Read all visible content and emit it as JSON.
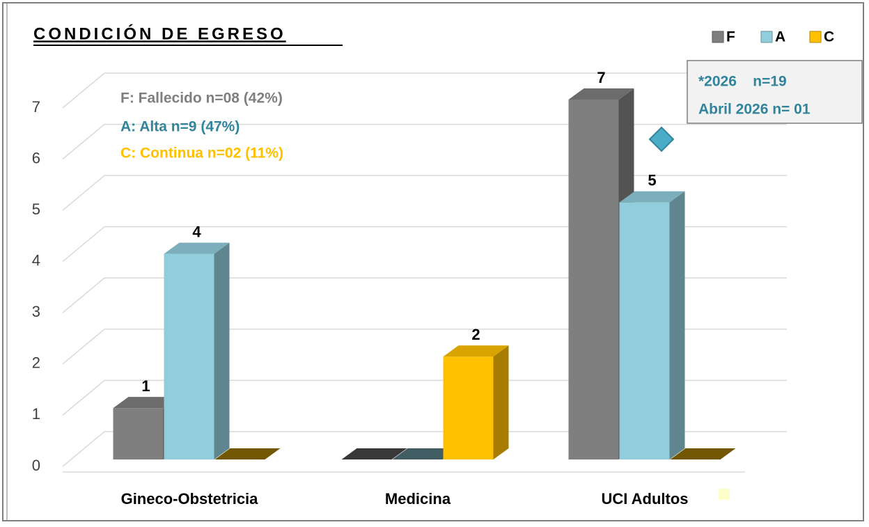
{
  "chart_data": {
    "type": "bar3d",
    "title": "CONDICIÓN DE EGRESO",
    "categories": [
      "Gineco-Obstetricia",
      "Medicina",
      "UCI Adultos"
    ],
    "series": [
      {
        "name": "F",
        "color": "#7f7f7f",
        "values": [
          1,
          0,
          7
        ]
      },
      {
        "name": "A",
        "color": "#92cddc",
        "values": [
          4,
          0,
          5
        ]
      },
      {
        "name": "C",
        "color": "#ffc000",
        "values": [
          0,
          2,
          0
        ]
      }
    ],
    "ylim": [
      0,
      7
    ],
    "yticks": [
      0,
      1,
      2,
      3,
      4,
      5,
      6,
      7
    ],
    "grid": true,
    "annotations": [
      "F: Fallecido n=08 (42%)",
      "A: Alta n=9 (47%)",
      "C: Continua n=02 (11%)"
    ],
    "note_box": [
      "*2026    n=19",
      "Abril 2026 n= 01"
    ]
  }
}
